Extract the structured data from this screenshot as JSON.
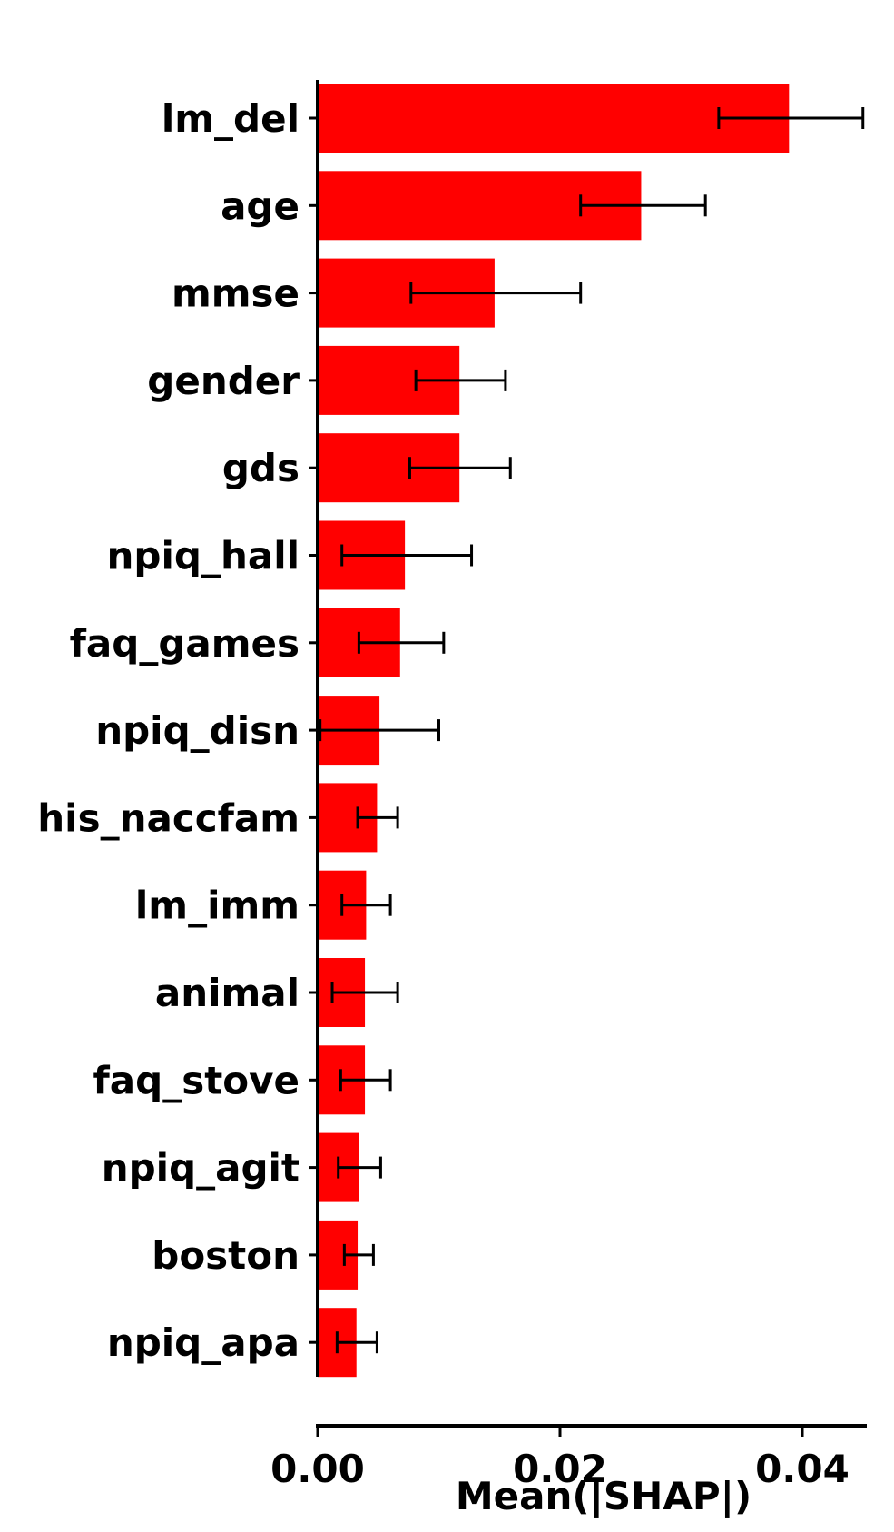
{
  "chart_data": {
    "type": "bar",
    "orientation": "horizontal",
    "title": "",
    "xlabel": "Mean(|SHAP|)",
    "ylabel": "",
    "xlim": [
      0,
      0.045
    ],
    "xticks": [
      0.0,
      0.02,
      0.04
    ],
    "xtick_labels": [
      "0.00",
      "0.02",
      "0.04"
    ],
    "bar_color": "#ff0000",
    "errorbar_color": "#000000",
    "grid": false,
    "legend": "none",
    "categories": [
      "lm_del",
      "age",
      "mmse",
      "gender",
      "gds",
      "npiq_hall",
      "faq_games",
      "npiq_disn",
      "his_naccfam",
      "lm_imm",
      "animal",
      "faq_stove",
      "npiq_agit",
      "boston",
      "npiq_apa"
    ],
    "values": [
      0.0389,
      0.0267,
      0.0146,
      0.0117,
      0.0117,
      0.0072,
      0.0068,
      0.0051,
      0.0049,
      0.004,
      0.0039,
      0.0039,
      0.0034,
      0.0033,
      0.0032
    ],
    "error_low": [
      0.0331,
      0.0217,
      0.0077,
      0.0081,
      0.0076,
      0.002,
      0.0034,
      0.0002,
      0.0033,
      0.002,
      0.0012,
      0.0019,
      0.0017,
      0.0022,
      0.0016
    ],
    "error_high": [
      0.045,
      0.032,
      0.0217,
      0.0155,
      0.0159,
      0.0127,
      0.0104,
      0.01,
      0.0066,
      0.006,
      0.0066,
      0.006,
      0.0052,
      0.0046,
      0.0049
    ]
  }
}
